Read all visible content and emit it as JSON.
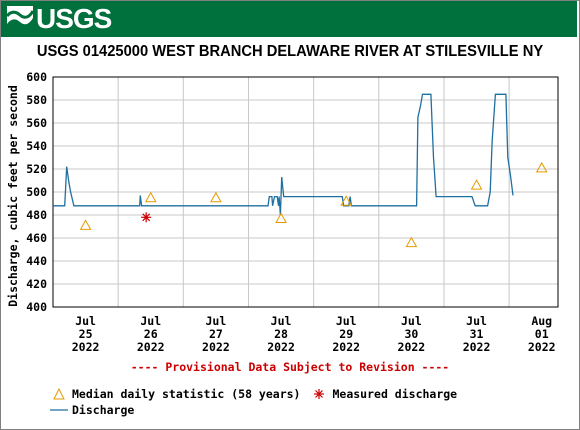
{
  "header": {
    "logo_text": "USGS",
    "title": "USGS 01425000 WEST BRANCH DELAWARE RIVER AT STILESVILLE NY",
    "brand_color": "#00703c",
    "logo_icon": "usgs-wave-icon"
  },
  "chart_data": {
    "type": "line",
    "title": "USGS 01425000 WEST BRANCH DELAWARE RIVER AT STILESVILLE NY",
    "ylabel": "Discharge, cubic feet per second",
    "xlabel": "",
    "ylim": [
      400,
      600
    ],
    "yticks": [
      400,
      420,
      440,
      460,
      480,
      500,
      520,
      540,
      560,
      580,
      600
    ],
    "xlim": [
      0,
      7.75
    ],
    "xticks": [
      {
        "x": 0.5,
        "label": "Jul\n25\n2022"
      },
      {
        "x": 1.5,
        "label": "Jul\n26\n2022"
      },
      {
        "x": 2.5,
        "label": "Jul\n27\n2022"
      },
      {
        "x": 3.5,
        "label": "Jul\n28\n2022"
      },
      {
        "x": 4.5,
        "label": "Jul\n29\n2022"
      },
      {
        "x": 5.5,
        "label": "Jul\n30\n2022"
      },
      {
        "x": 6.5,
        "label": "Jul\n31\n2022"
      },
      {
        "x": 7.5,
        "label": "Aug\n01\n2022"
      }
    ],
    "grid": true,
    "series": [
      {
        "name": "Discharge",
        "color": "#1f6fa0",
        "points": [
          [
            0.0,
            488
          ],
          [
            0.18,
            488
          ],
          [
            0.21,
            522
          ],
          [
            0.24,
            510
          ],
          [
            0.27,
            500
          ],
          [
            0.32,
            488
          ],
          [
            1.33,
            488
          ],
          [
            1.34,
            497
          ],
          [
            1.36,
            488
          ],
          [
            1.5,
            488
          ],
          [
            3.3,
            488
          ],
          [
            3.32,
            496
          ],
          [
            3.36,
            496
          ],
          [
            3.37,
            488
          ],
          [
            3.4,
            496
          ],
          [
            3.44,
            496
          ],
          [
            3.46,
            488
          ],
          [
            3.47,
            496
          ],
          [
            3.49,
            480
          ],
          [
            3.51,
            513
          ],
          [
            3.54,
            496
          ],
          [
            3.58,
            496
          ],
          [
            4.44,
            496
          ],
          [
            4.46,
            488
          ],
          [
            4.54,
            488
          ],
          [
            4.56,
            496
          ],
          [
            4.58,
            488
          ],
          [
            5.4,
            488
          ],
          [
            5.5,
            488
          ],
          [
            5.58,
            488
          ],
          [
            5.6,
            565
          ],
          [
            5.64,
            575
          ],
          [
            5.67,
            585
          ],
          [
            5.8,
            585
          ],
          [
            5.84,
            530
          ],
          [
            5.88,
            496
          ],
          [
            6.1,
            496
          ],
          [
            6.43,
            496
          ],
          [
            6.48,
            488
          ],
          [
            6.67,
            488
          ],
          [
            6.71,
            500
          ],
          [
            6.74,
            545
          ],
          [
            6.79,
            585
          ],
          [
            6.95,
            585
          ],
          [
            6.98,
            530
          ],
          [
            7.02,
            515
          ],
          [
            7.06,
            497
          ]
        ]
      },
      {
        "name": "Median daily statistic (58 years)",
        "color": "#e69a00",
        "marker": "triangle",
        "points": [
          [
            0.5,
            471
          ],
          [
            1.5,
            495
          ],
          [
            2.5,
            495
          ],
          [
            3.5,
            477
          ],
          [
            4.5,
            492
          ],
          [
            5.5,
            456
          ],
          [
            6.5,
            506
          ],
          [
            7.5,
            521
          ]
        ]
      },
      {
        "name": "Measured discharge",
        "color": "#cc0000",
        "marker": "star",
        "points": [
          [
            1.43,
            478
          ]
        ]
      }
    ]
  },
  "notice": "---- Provisional Data Subject to Revision ----",
  "legend": {
    "median_label": "Median daily statistic (58 years)",
    "measured_label": "Measured discharge",
    "discharge_label": "Discharge"
  }
}
